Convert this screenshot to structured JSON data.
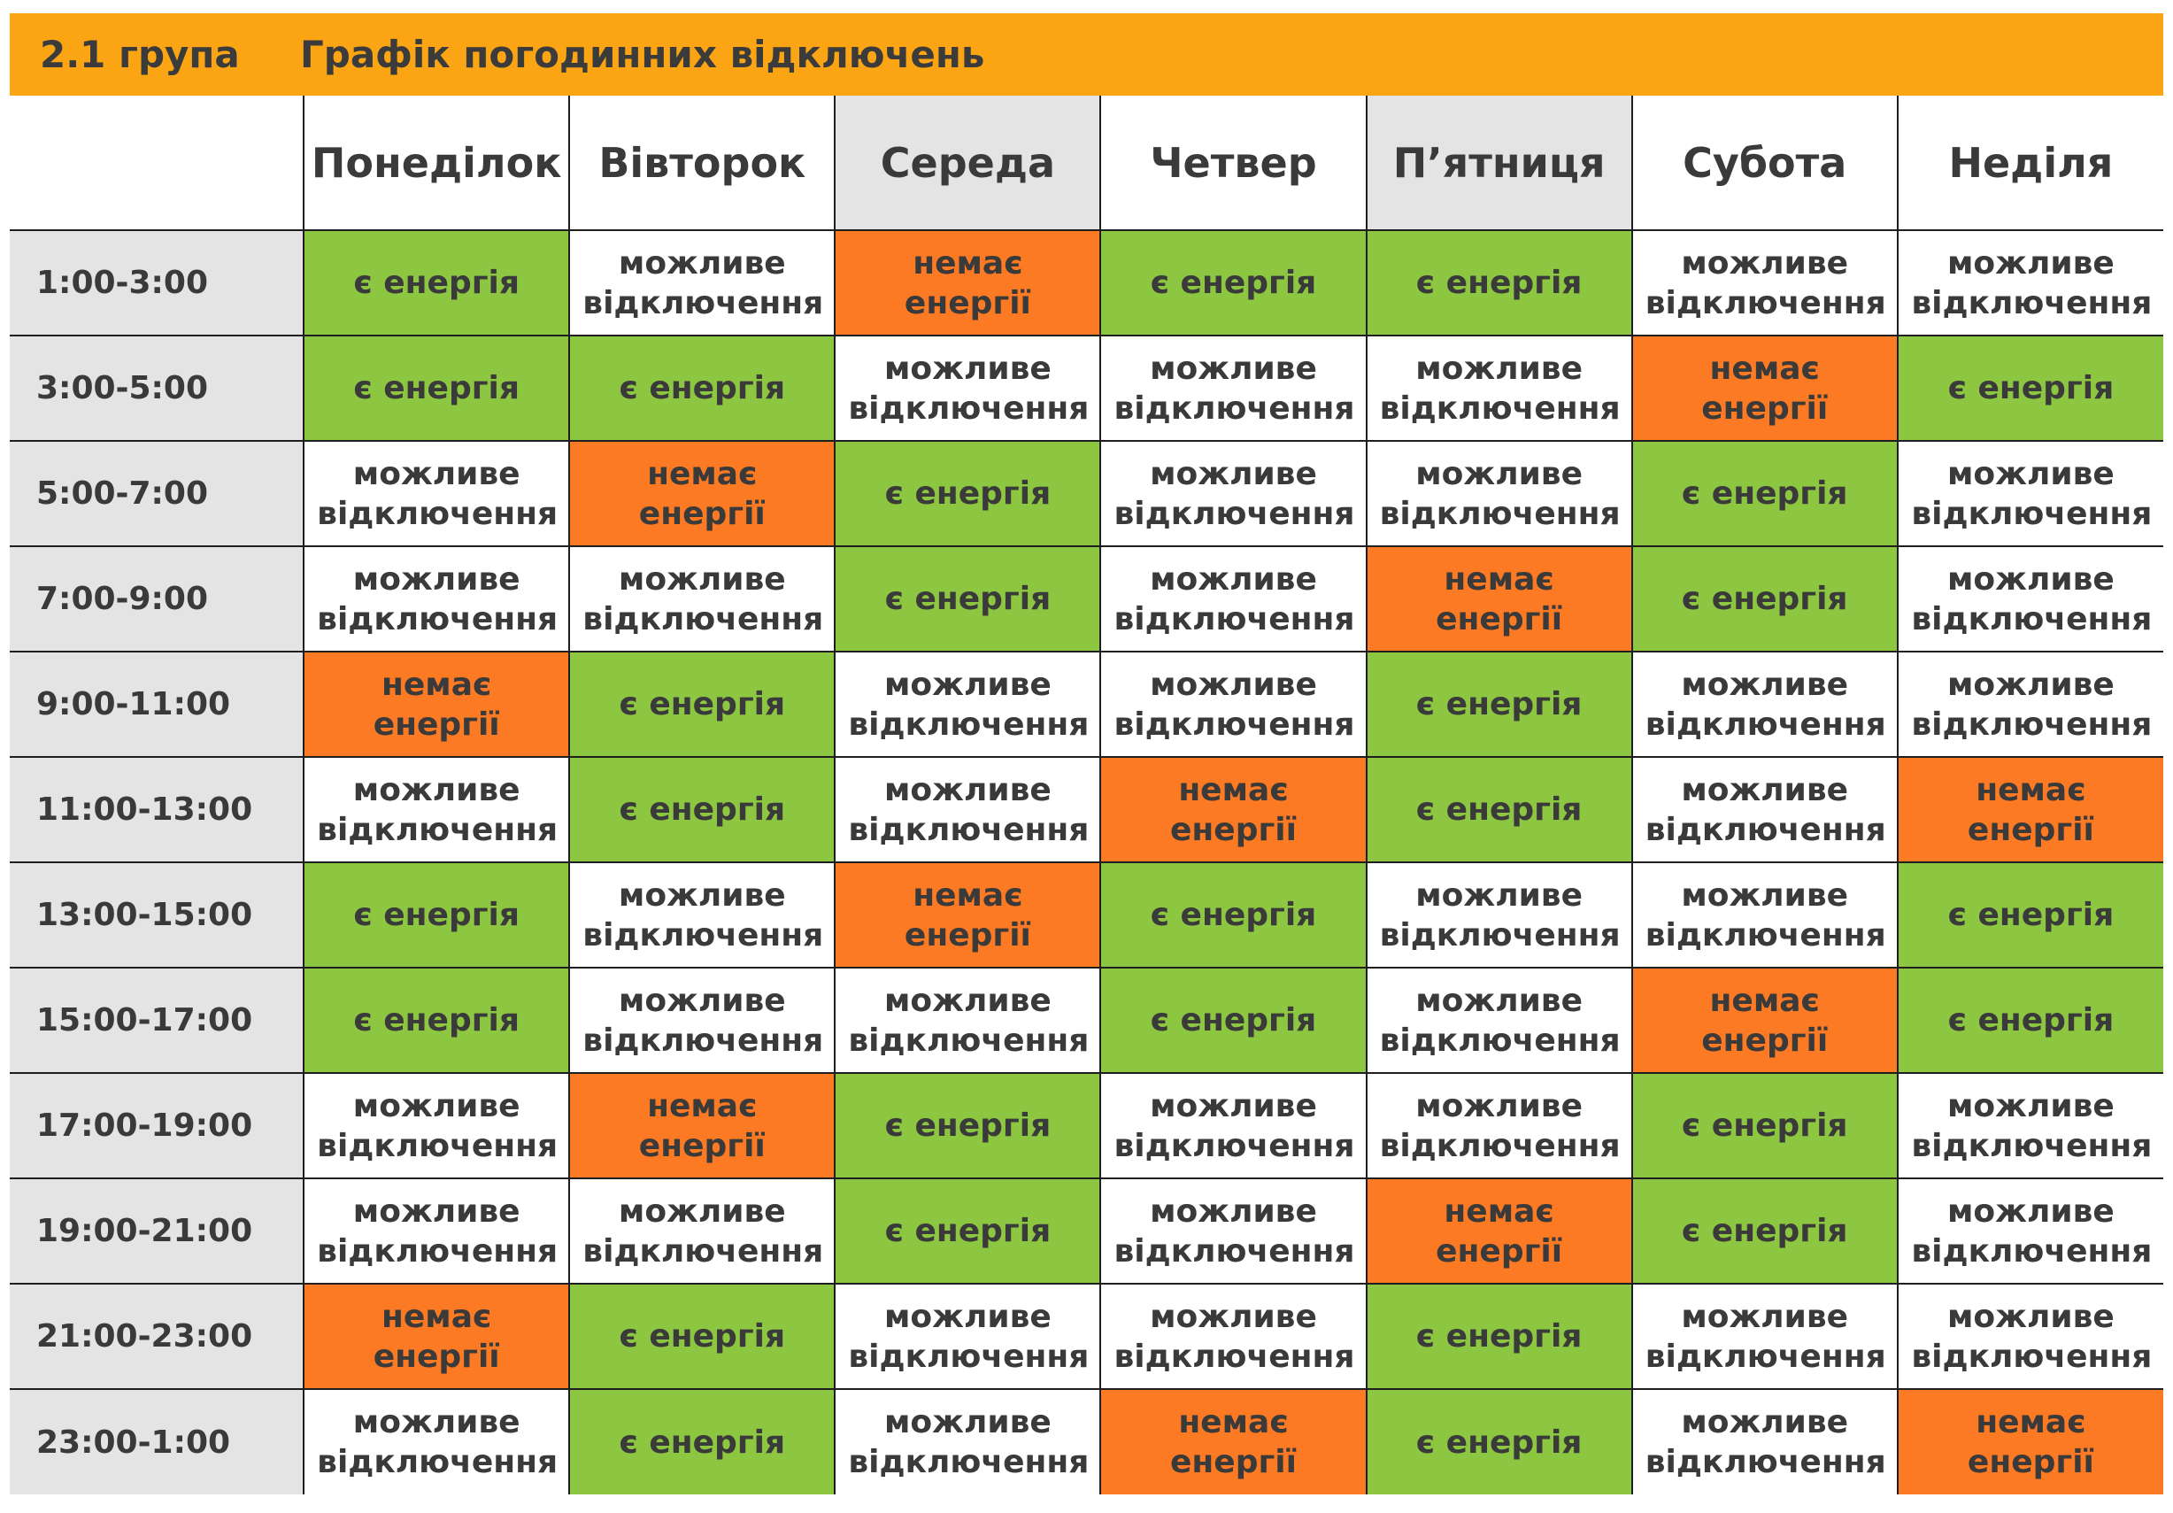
{
  "header": {
    "group": "2.1 група",
    "title": "Графік погодинних відключень",
    "background_color": "#fba514"
  },
  "days": [
    "Понеділок",
    "Вівторок",
    "Середа",
    "Четвер",
    "П’ятниця",
    "Субота",
    "Неділя"
  ],
  "status_labels": {
    "on": "є енергія",
    "off": "немає енергії",
    "maybe": "можливе відключення"
  },
  "status_colors": {
    "on": "#8dc641",
    "off": "#fb7a23",
    "maybe": "#ffffff"
  },
  "rows": [
    {
      "time": "1:00-3:00",
      "cells": [
        "on",
        "maybe",
        "off",
        "on",
        "on",
        "maybe",
        "maybe"
      ]
    },
    {
      "time": "3:00-5:00",
      "cells": [
        "on",
        "on",
        "maybe",
        "maybe",
        "maybe",
        "off",
        "on"
      ]
    },
    {
      "time": "5:00-7:00",
      "cells": [
        "maybe",
        "off",
        "on",
        "maybe",
        "maybe",
        "on",
        "maybe"
      ]
    },
    {
      "time": "7:00-9:00",
      "cells": [
        "maybe",
        "maybe",
        "on",
        "maybe",
        "off",
        "on",
        "maybe"
      ]
    },
    {
      "time": "9:00-11:00",
      "cells": [
        "off",
        "on",
        "maybe",
        "maybe",
        "on",
        "maybe",
        "maybe"
      ]
    },
    {
      "time": "11:00-13:00",
      "cells": [
        "maybe",
        "on",
        "maybe",
        "off",
        "on",
        "maybe",
        "off"
      ]
    },
    {
      "time": "13:00-15:00",
      "cells": [
        "on",
        "maybe",
        "off",
        "on",
        "maybe",
        "maybe",
        "on"
      ]
    },
    {
      "time": "15:00-17:00",
      "cells": [
        "on",
        "maybe",
        "maybe",
        "on",
        "maybe",
        "off",
        "on"
      ]
    },
    {
      "time": "17:00-19:00",
      "cells": [
        "maybe",
        "off",
        "on",
        "maybe",
        "maybe",
        "on",
        "maybe"
      ]
    },
    {
      "time": "19:00-21:00",
      "cells": [
        "maybe",
        "maybe",
        "on",
        "maybe",
        "off",
        "on",
        "maybe"
      ]
    },
    {
      "time": "21:00-23:00",
      "cells": [
        "off",
        "on",
        "maybe",
        "maybe",
        "on",
        "maybe",
        "maybe"
      ]
    },
    {
      "time": "23:00-1:00",
      "cells": [
        "maybe",
        "on",
        "maybe",
        "off",
        "on",
        "maybe",
        "off"
      ]
    }
  ]
}
